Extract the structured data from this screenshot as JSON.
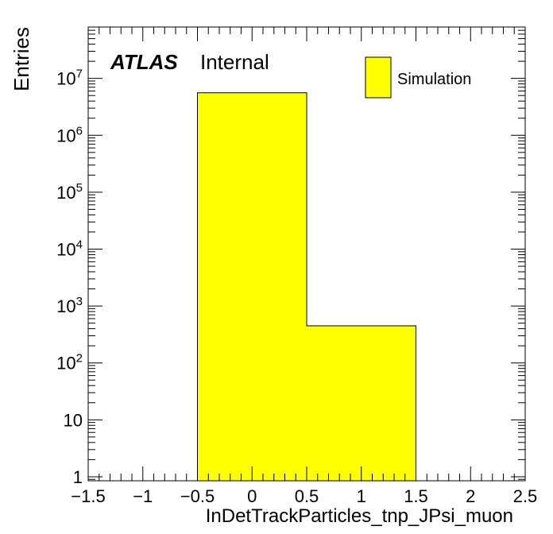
{
  "chart_data": {
    "type": "bar",
    "histogram": true,
    "log_y": true,
    "xlabel": "InDetTrackParticles_tnp_JPsi_muon",
    "ylabel": "Entries",
    "xlim": [
      -1.5,
      2.5
    ],
    "ylim": [
      0.85,
      80000000
    ],
    "bins": [
      {
        "low": -0.5,
        "high": 0.5,
        "value": 5600000
      },
      {
        "low": 0.5,
        "high": 1.5,
        "value": 450
      }
    ],
    "x_ticks": [
      {
        "value": -1.5,
        "label": "−1.5"
      },
      {
        "value": -1,
        "label": "−1"
      },
      {
        "value": -0.5,
        "label": "−0.5"
      },
      {
        "value": 0,
        "label": "0"
      },
      {
        "value": 0.5,
        "label": "0.5"
      },
      {
        "value": 1,
        "label": "1"
      },
      {
        "value": 1.5,
        "label": "1.5"
      },
      {
        "value": 2,
        "label": "2"
      },
      {
        "value": 2.5,
        "label": "2.5"
      }
    ],
    "y_ticks": [
      {
        "value": 1,
        "base": "1",
        "exp": ""
      },
      {
        "value": 10,
        "base": "10",
        "exp": ""
      },
      {
        "value": 100,
        "base": "10",
        "exp": "2"
      },
      {
        "value": 1000,
        "base": "10",
        "exp": "3"
      },
      {
        "value": 10000,
        "base": "10",
        "exp": "4"
      },
      {
        "value": 100000,
        "base": "10",
        "exp": "5"
      },
      {
        "value": 1000000,
        "base": "10",
        "exp": "6"
      },
      {
        "value": 10000000,
        "base": "10",
        "exp": "7"
      }
    ],
    "legend": {
      "entries": [
        "Simulation"
      ],
      "placement": "top-right"
    },
    "annotation": {
      "bold": "ATLAS",
      "text": "Internal"
    },
    "fill_color": "#ffff00",
    "line_color": "#000000"
  }
}
